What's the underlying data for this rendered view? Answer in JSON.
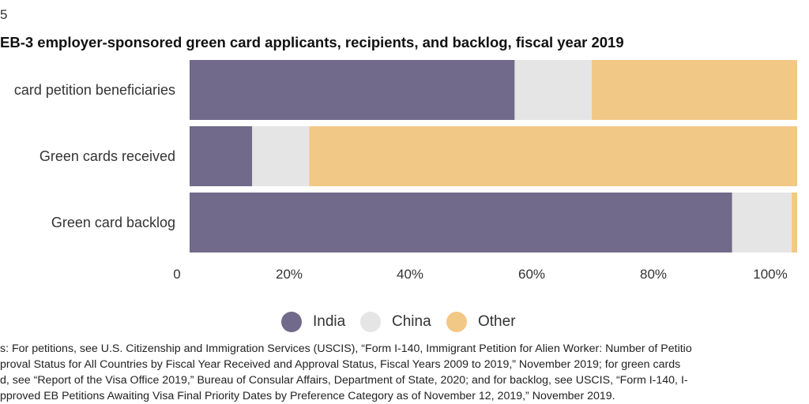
{
  "figure_number": "5",
  "title": "EB-3 employer-sponsored green card applicants, recipients, and backlog, fiscal year 2019",
  "colors": {
    "India": "#716a8a",
    "China": "#e5e5e5",
    "Other": "#f2c886"
  },
  "legend": [
    {
      "name": "India",
      "color_key": "India"
    },
    {
      "name": "China",
      "color_key": "China"
    },
    {
      "name": "Other",
      "color_key": "Other"
    }
  ],
  "chart_data": {
    "type": "bar",
    "orientation": "horizontal",
    "stacked": true,
    "categories": [
      "card petition beneficiaries",
      "Green cards received",
      "Green card backlog"
    ],
    "series": [
      {
        "name": "India",
        "values": [
          53.5,
          10.3,
          89.3
        ]
      },
      {
        "name": "China",
        "values": [
          12.7,
          9.4,
          9.8
        ]
      },
      {
        "name": "Other",
        "values": [
          33.8,
          80.3,
          0.9
        ]
      }
    ],
    "xlim": [
      0,
      100
    ],
    "x_ticks": [
      "0",
      "20%",
      "40%",
      "60%",
      "80%",
      "100%"
    ],
    "grid": false,
    "legend_position": "bottom"
  },
  "source": {
    "lines": [
      "s: For petitions, see U.S. Citizenship and Immigration Services (USCIS), “Form I-140, Immigrant Petition for Alien Worker: Number of Petitio",
      "proval Status for All Countries by Fiscal Year Received and Approval Status, Fiscal Years 2009 to 2019,” November 2019; for green cards",
      "d, see “Report of the Visa Office 2019,” Bureau of Consular Affairs, Department of State, 2020; and for backlog, see USCIS, “Form I-140, I-",
      "pproved EB Petitions Awaiting Visa Final Priority Dates by Preference Category as of November 12, 2019,” November 2019."
    ]
  }
}
